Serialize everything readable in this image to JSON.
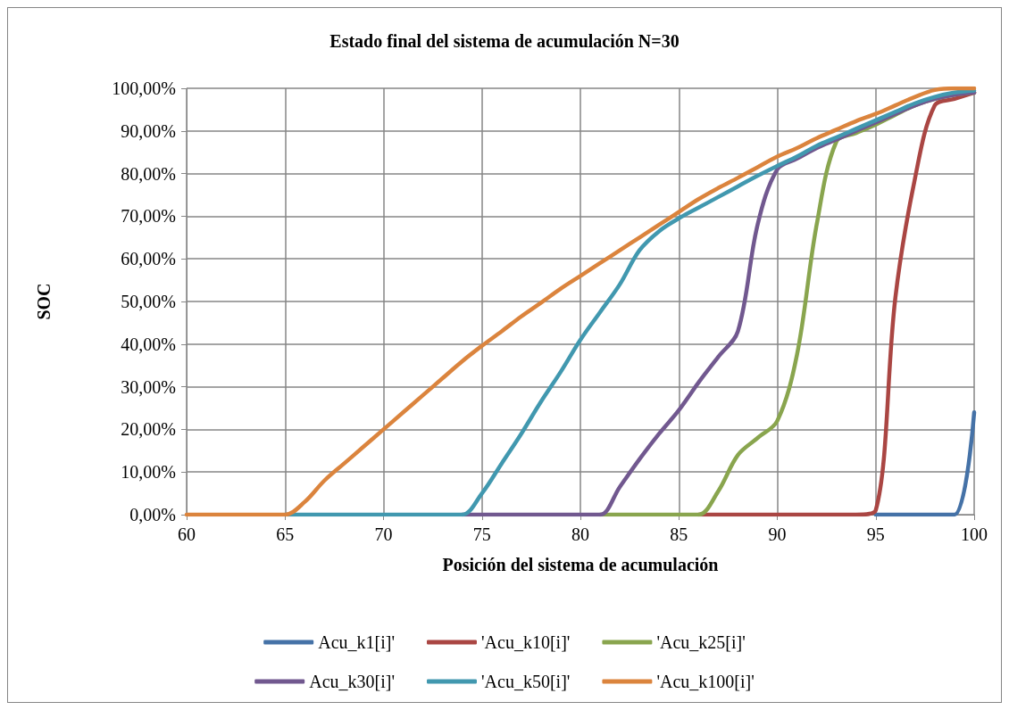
{
  "chart_data": {
    "type": "line",
    "title": "Estado final del sistema de acumulación N=30",
    "xlabel": "Posición del sistema de acumulación",
    "ylabel": "SOC",
    "x": [
      60,
      61,
      62,
      63,
      64,
      65,
      66,
      67,
      68,
      69,
      70,
      71,
      72,
      73,
      74,
      75,
      76,
      77,
      78,
      79,
      80,
      81,
      82,
      83,
      84,
      85,
      86,
      87,
      88,
      89,
      90,
      91,
      92,
      93,
      94,
      95,
      96,
      97,
      98,
      99,
      100
    ],
    "series": [
      {
        "name": "Acu_k1[i]'",
        "color": "#4572a7",
        "values": [
          null,
          null,
          null,
          null,
          null,
          null,
          null,
          null,
          null,
          null,
          null,
          null,
          null,
          null,
          null,
          null,
          null,
          null,
          null,
          null,
          null,
          null,
          null,
          null,
          null,
          null,
          null,
          null,
          null,
          null,
          null,
          null,
          null,
          null,
          null,
          0,
          0,
          0,
          0,
          0,
          24
        ]
      },
      {
        "name": "'Acu_k10[i]'",
        "color": "#aa4643",
        "values": [
          null,
          null,
          null,
          null,
          null,
          null,
          null,
          null,
          null,
          null,
          null,
          null,
          null,
          null,
          null,
          null,
          null,
          null,
          null,
          null,
          null,
          null,
          null,
          null,
          null,
          null,
          0,
          0,
          0,
          0,
          0,
          0,
          0,
          0,
          0,
          1,
          51,
          79,
          96,
          97.5,
          99
        ]
      },
      {
        "name": "'Acu_k25[i]'",
        "color": "#89a54e",
        "values": [
          null,
          null,
          null,
          null,
          null,
          null,
          null,
          null,
          null,
          null,
          null,
          null,
          null,
          null,
          null,
          null,
          null,
          null,
          null,
          null,
          null,
          0,
          0,
          0,
          0,
          0,
          0,
          5.5,
          14,
          18,
          22,
          37.5,
          68,
          87.5,
          89.5,
          91.5,
          93.8,
          96,
          97.5,
          98.5,
          99
        ]
      },
      {
        "name": "Acu_k30[i]'",
        "color": "#71588f",
        "values": [
          null,
          null,
          null,
          null,
          null,
          null,
          null,
          null,
          null,
          null,
          null,
          null,
          null,
          null,
          0,
          0,
          0,
          0,
          0,
          0,
          0,
          0,
          6.5,
          13,
          19,
          24.5,
          31,
          37,
          43,
          68,
          81,
          83.5,
          86,
          88,
          90,
          92,
          94,
          96,
          97.5,
          98.5,
          99
        ]
      },
      {
        "name": "'Acu_k50[i]'",
        "color": "#4198af",
        "values": [
          null,
          null,
          null,
          null,
          null,
          0,
          0,
          0,
          0,
          0,
          0,
          0,
          0,
          0,
          0,
          5,
          12,
          19,
          26.5,
          33.5,
          41,
          47.5,
          54,
          62,
          66.5,
          69.5,
          72,
          74.5,
          77,
          79.5,
          81.8,
          84,
          86.5,
          88.5,
          90.5,
          92.5,
          94.5,
          96.5,
          98,
          99,
          99.5
        ]
      },
      {
        "name": "'Acu_k100[i]'",
        "color": "#db843d",
        "values": [
          0,
          0,
          0,
          0,
          0,
          0,
          3,
          8,
          12,
          16,
          20,
          24,
          28,
          32,
          36,
          39.6,
          43,
          46.5,
          49.7,
          53,
          56,
          59,
          62,
          65,
          68,
          71,
          74,
          76.6,
          79,
          81.5,
          84,
          86,
          88.3,
          90.3,
          92.3,
          94,
          96,
          98,
          99.6,
          100,
          100
        ]
      }
    ],
    "xlim": [
      60,
      100
    ],
    "xticks": [
      60,
      65,
      70,
      75,
      80,
      85,
      90,
      95,
      100
    ],
    "ylim": [
      0,
      100
    ],
    "yticks": [
      {
        "value": 0,
        "label": "0,00%"
      },
      {
        "value": 10,
        "label": "10,00%"
      },
      {
        "value": 20,
        "label": "20,00%"
      },
      {
        "value": 30,
        "label": "30,00%"
      },
      {
        "value": 40,
        "label": "40,00%"
      },
      {
        "value": 50,
        "label": "50,00%"
      },
      {
        "value": 60,
        "label": "60,00%"
      },
      {
        "value": 70,
        "label": "70,00%"
      },
      {
        "value": 80,
        "label": "80,00%"
      },
      {
        "value": 90,
        "label": "90,00%"
      },
      {
        "value": 100,
        "label": "100,00%"
      }
    ],
    "grid": true,
    "legend": "bottom",
    "marker": "none",
    "line_style": "solid"
  }
}
